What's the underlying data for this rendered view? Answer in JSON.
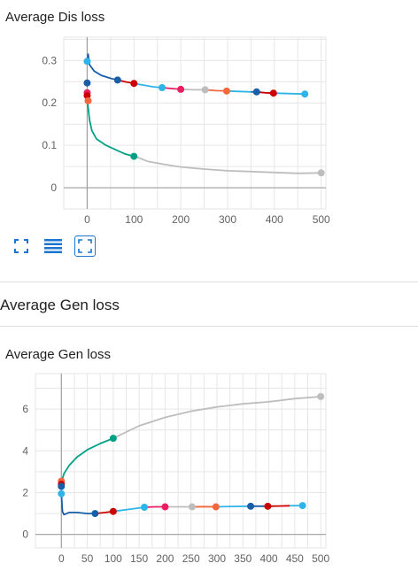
{
  "charts": [
    {
      "card_title": "Average Dis loss",
      "chart_data": {
        "type": "line",
        "title": "Average Dis loss",
        "xlabel": "",
        "ylabel": "",
        "xlim": [
          -50,
          510
        ],
        "ylim": [
          -0.05,
          0.355
        ],
        "xticks": [
          0,
          100,
          200,
          300,
          400,
          500
        ],
        "yticks": [
          0,
          0.1,
          0.2,
          0.3
        ],
        "ytick_labels": [
          "0",
          "0.1",
          "0.2",
          "0.3"
        ],
        "grid": true,
        "series": [
          {
            "color": "#bdbdbd",
            "points": [
              [
                100,
                0.075
              ],
              [
                130,
                0.062
              ],
              [
                160,
                0.056
              ],
              [
                200,
                0.049
              ],
              [
                250,
                0.044
              ],
              [
                300,
                0.04
              ],
              [
                350,
                0.038
              ],
              [
                400,
                0.036
              ],
              [
                450,
                0.034
              ],
              [
                500,
                0.035
              ]
            ]
          },
          {
            "color": "#00a087",
            "points": [
              [
                0,
                0.205
              ],
              [
                2,
                0.19
              ],
              [
                5,
                0.16
              ],
              [
                10,
                0.135
              ],
              [
                20,
                0.115
              ],
              [
                40,
                0.1
              ],
              [
                60,
                0.09
              ],
              [
                80,
                0.08
              ],
              [
                100,
                0.074
              ]
            ]
          },
          {
            "color": "#1a5ea8",
            "points": [
              [
                0,
                0.298
              ],
              [
                2,
                0.315
              ],
              [
                5,
                0.29
              ],
              [
                15,
                0.275
              ],
              [
                30,
                0.265
              ],
              [
                50,
                0.258
              ],
              [
                65,
                0.254
              ]
            ]
          },
          {
            "color": "#cc0000",
            "points": [
              [
                65,
                0.254
              ],
              [
                80,
                0.25
              ],
              [
                100,
                0.246
              ]
            ]
          },
          {
            "color": "#2eb4e8",
            "points": [
              [
                100,
                0.246
              ],
              [
                120,
                0.242
              ],
              [
                140,
                0.238
              ],
              [
                160,
                0.236
              ]
            ]
          },
          {
            "color": "#e91e63",
            "points": [
              [
                160,
                0.236
              ],
              [
                180,
                0.234
              ],
              [
                200,
                0.232
              ]
            ]
          },
          {
            "color": "#bdbdbd",
            "points": [
              [
                200,
                0.232
              ],
              [
                225,
                0.231
              ],
              [
                252,
                0.231
              ]
            ]
          },
          {
            "color": "#f4683c",
            "points": [
              [
                252,
                0.231
              ],
              [
                275,
                0.229
              ],
              [
                298,
                0.228
              ]
            ]
          },
          {
            "color": "#2eb4e8",
            "points": [
              [
                298,
                0.228
              ],
              [
                325,
                0.227
              ],
              [
                350,
                0.226
              ]
            ]
          },
          {
            "color": "#1a5ea8",
            "points": [
              [
                350,
                0.226
              ],
              [
                362,
                0.226
              ]
            ]
          },
          {
            "color": "#cc0000",
            "points": [
              [
                362,
                0.226
              ],
              [
                380,
                0.224
              ],
              [
                398,
                0.223
              ]
            ]
          },
          {
            "color": "#2eb4e8",
            "points": [
              [
                398,
                0.223
              ],
              [
                430,
                0.222
              ],
              [
                465,
                0.221
              ]
            ]
          }
        ],
        "markers": [
          {
            "x": 0,
            "y": 0.298,
            "color": "#2eb4e8"
          },
          {
            "x": 0,
            "y": 0.247,
            "color": "#1a5ea8"
          },
          {
            "x": 0,
            "y": 0.224,
            "color": "#e91e63"
          },
          {
            "x": 0,
            "y": 0.217,
            "color": "#cc0000"
          },
          {
            "x": 2,
            "y": 0.205,
            "color": "#f4683c"
          },
          {
            "x": 65,
            "y": 0.254,
            "color": "#1a5ea8"
          },
          {
            "x": 100,
            "y": 0.246,
            "color": "#cc0000"
          },
          {
            "x": 100,
            "y": 0.074,
            "color": "#00a087"
          },
          {
            "x": 160,
            "y": 0.236,
            "color": "#2eb4e8"
          },
          {
            "x": 200,
            "y": 0.232,
            "color": "#e91e63"
          },
          {
            "x": 252,
            "y": 0.231,
            "color": "#bdbdbd"
          },
          {
            "x": 298,
            "y": 0.228,
            "color": "#f4683c"
          },
          {
            "x": 362,
            "y": 0.226,
            "color": "#1a5ea8"
          },
          {
            "x": 398,
            "y": 0.223,
            "color": "#cc0000"
          },
          {
            "x": 465,
            "y": 0.221,
            "color": "#2eb4e8"
          },
          {
            "x": 500,
            "y": 0.035,
            "color": "#bdbdbd"
          }
        ]
      }
    },
    {
      "card_title": "Average Gen loss",
      "chart_data": {
        "type": "line",
        "title": "Average Gen loss",
        "xlabel": "",
        "ylabel": "",
        "xlim": [
          -50,
          510
        ],
        "ylim": [
          -0.65,
          7.7
        ],
        "xticks": [
          0,
          50,
          100,
          150,
          200,
          250,
          300,
          350,
          400,
          450,
          500
        ],
        "yticks": [
          0,
          2,
          4,
          6
        ],
        "ytick_labels": [
          "0",
          "2",
          "4",
          "6"
        ],
        "grid": true,
        "series": [
          {
            "color": "#bdbdbd",
            "points": [
              [
                100,
                4.6
              ],
              [
                150,
                5.2
              ],
              [
                200,
                5.6
              ],
              [
                250,
                5.9
              ],
              [
                300,
                6.1
              ],
              [
                350,
                6.25
              ],
              [
                400,
                6.35
              ],
              [
                450,
                6.5
              ],
              [
                500,
                6.6
              ]
            ]
          },
          {
            "color": "#00a087",
            "points": [
              [
                0,
                2.5
              ],
              [
                5,
                2.9
              ],
              [
                15,
                3.3
              ],
              [
                30,
                3.7
              ],
              [
                50,
                4.05
              ],
              [
                75,
                4.35
              ],
              [
                100,
                4.6
              ]
            ]
          },
          {
            "color": "#1a5ea8",
            "points": [
              [
                0,
                1.95
              ],
              [
                2,
                1.1
              ],
              [
                5,
                0.95
              ],
              [
                15,
                1.05
              ],
              [
                30,
                1.05
              ],
              [
                50,
                1.0
              ],
              [
                65,
                1.0
              ]
            ]
          },
          {
            "color": "#cc0000",
            "points": [
              [
                65,
                1.0
              ],
              [
                85,
                1.05
              ],
              [
                100,
                1.1
              ]
            ]
          },
          {
            "color": "#2eb4e8",
            "points": [
              [
                100,
                1.1
              ],
              [
                130,
                1.2
              ],
              [
                160,
                1.3
              ]
            ]
          },
          {
            "color": "#e91e63",
            "points": [
              [
                160,
                1.3
              ],
              [
                180,
                1.32
              ],
              [
                200,
                1.32
              ]
            ]
          },
          {
            "color": "#bdbdbd",
            "points": [
              [
                200,
                1.32
              ],
              [
                225,
                1.32
              ],
              [
                252,
                1.32
              ]
            ]
          },
          {
            "color": "#f4683c",
            "points": [
              [
                252,
                1.32
              ],
              [
                275,
                1.33
              ],
              [
                298,
                1.32
              ]
            ]
          },
          {
            "color": "#2eb4e8",
            "points": [
              [
                298,
                1.32
              ],
              [
                330,
                1.34
              ],
              [
                365,
                1.35
              ]
            ]
          },
          {
            "color": "#1a5ea8",
            "points": [
              [
                365,
                1.35
              ],
              [
                380,
                1.35
              ],
              [
                398,
                1.35
              ]
            ]
          },
          {
            "color": "#cc0000",
            "points": [
              [
                398,
                1.35
              ],
              [
                420,
                1.36
              ],
              [
                440,
                1.37
              ]
            ]
          },
          {
            "color": "#2eb4e8",
            "points": [
              [
                440,
                1.37
              ],
              [
                465,
                1.38
              ]
            ]
          }
        ],
        "markers": [
          {
            "x": 0,
            "y": 2.55,
            "color": "#f4683c"
          },
          {
            "x": 0,
            "y": 2.4,
            "color": "#cc0000"
          },
          {
            "x": 0,
            "y": 2.3,
            "color": "#1a5ea8"
          },
          {
            "x": 0,
            "y": 1.95,
            "color": "#2eb4e8"
          },
          {
            "x": 100,
            "y": 4.6,
            "color": "#00a087"
          },
          {
            "x": 65,
            "y": 1.0,
            "color": "#1a5ea8"
          },
          {
            "x": 100,
            "y": 1.1,
            "color": "#cc0000"
          },
          {
            "x": 160,
            "y": 1.3,
            "color": "#2eb4e8"
          },
          {
            "x": 200,
            "y": 1.32,
            "color": "#e91e63"
          },
          {
            "x": 252,
            "y": 1.32,
            "color": "#bdbdbd"
          },
          {
            "x": 298,
            "y": 1.32,
            "color": "#f4683c"
          },
          {
            "x": 365,
            "y": 1.35,
            "color": "#1a5ea8"
          },
          {
            "x": 398,
            "y": 1.35,
            "color": "#cc0000"
          },
          {
            "x": 465,
            "y": 1.38,
            "color": "#2eb4e8"
          },
          {
            "x": 500,
            "y": 6.6,
            "color": "#bdbdbd"
          }
        ]
      }
    }
  ],
  "section": {
    "title": "Average Gen loss"
  },
  "toolbar": {
    "icons": [
      "fullscreen-icon",
      "list-icon",
      "fit-to-domain-icon"
    ],
    "accent_color": "#1976d2"
  }
}
